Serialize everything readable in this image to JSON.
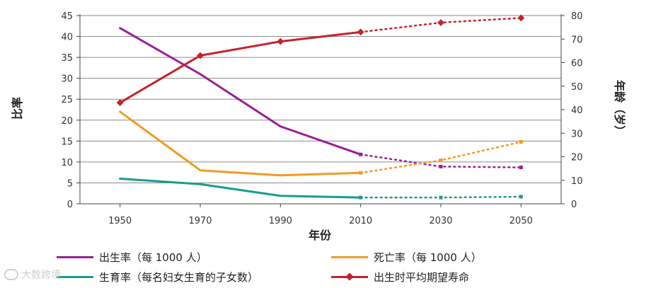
{
  "chart_data": {
    "type": "line",
    "categories": [
      "1950",
      "1970",
      "1990",
      "2010",
      "2030",
      "2050"
    ],
    "x": [
      1950,
      1970,
      1990,
      2010,
      2030,
      2050
    ],
    "projection_start": 2010,
    "xlabel": "年份",
    "ylabel_left": "比率",
    "ylabel_right": "年龄（岁）",
    "ylim_left": [
      0,
      45
    ],
    "ylim_right": [
      0,
      80
    ],
    "left_ticks": [
      0,
      5,
      10,
      15,
      20,
      25,
      30,
      35,
      40,
      45
    ],
    "right_ticks": [
      0,
      10,
      20,
      30,
      40,
      50,
      60,
      70,
      80
    ],
    "grid": "horizontal",
    "series": [
      {
        "key": "birth",
        "name": "出生率（每 1000 人）",
        "axis": "left",
        "color": "#9b1f94",
        "values": [
          42,
          31,
          18.5,
          11.8,
          8.9,
          8.7
        ]
      },
      {
        "key": "death",
        "name": "死亡率（每 1000 人）",
        "axis": "left",
        "color": "#f39a25",
        "values": [
          22,
          8,
          6.8,
          7.4,
          10.4,
          14.8
        ]
      },
      {
        "key": "fertility",
        "name": "生育率（每名妇女生育的子女数）",
        "axis": "left",
        "color": "#1a9c8f",
        "values": [
          6,
          4.7,
          1.9,
          1.5,
          1.5,
          1.7
        ]
      },
      {
        "key": "life",
        "name": "出生时平均期望寿命",
        "axis": "right",
        "color": "#c4232b",
        "values": [
          43,
          63,
          69,
          73,
          77,
          79
        ]
      }
    ]
  },
  "watermark": "大数跨境"
}
